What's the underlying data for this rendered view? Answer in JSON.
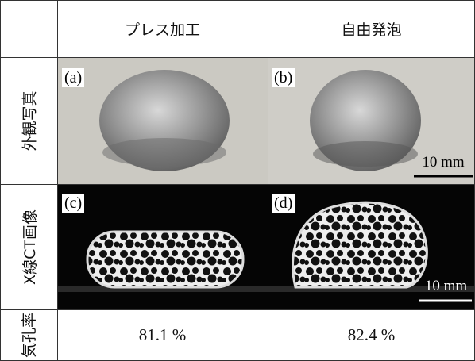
{
  "table": {
    "header": [
      "プレス加工",
      "自由発泡"
    ],
    "rows": [
      {
        "label": "外観写真",
        "panels": [
          "(a)",
          "(b)"
        ],
        "scale_bar": "10 mm"
      },
      {
        "label": "X線CT画像",
        "panels": [
          "(c)",
          "(d)"
        ],
        "scale_bar": "10 mm"
      },
      {
        "label": "気孔率",
        "cells": [
          "81.1 %",
          "82.4 %"
        ]
      }
    ]
  }
}
